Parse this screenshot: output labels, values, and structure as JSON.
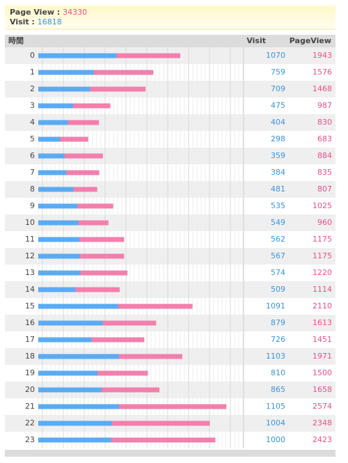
{
  "summary": {
    "page_view_label": "Page View",
    "page_view": 34330,
    "visit_label": "Visit",
    "visit": 16818
  },
  "chart_data": {
    "type": "bar",
    "x_label": "時間",
    "categories": [
      "0",
      "1",
      "2",
      "3",
      "4",
      "5",
      "6",
      "7",
      "8",
      "9",
      "10",
      "11",
      "12",
      "13",
      "14",
      "15",
      "16",
      "17",
      "18",
      "19",
      "20",
      "21",
      "22",
      "23"
    ],
    "series": [
      {
        "name": "Visit",
        "color": "#5aabf2",
        "values": [
          1070,
          759,
          709,
          475,
          404,
          298,
          359,
          384,
          481,
          535,
          549,
          562,
          567,
          574,
          509,
          1091,
          879,
          726,
          1103,
          810,
          865,
          1105,
          1004,
          1000
        ]
      },
      {
        "name": "PageView",
        "color": "#f27fac",
        "values": [
          1943,
          1576,
          1468,
          987,
          830,
          683,
          884,
          835,
          807,
          1025,
          960,
          1175,
          1175,
          1220,
          1114,
          2110,
          1613,
          1451,
          1971,
          1500,
          1658,
          2574,
          2348,
          2423
        ]
      }
    ],
    "xlim": [
      0,
      2810
    ]
  }
}
